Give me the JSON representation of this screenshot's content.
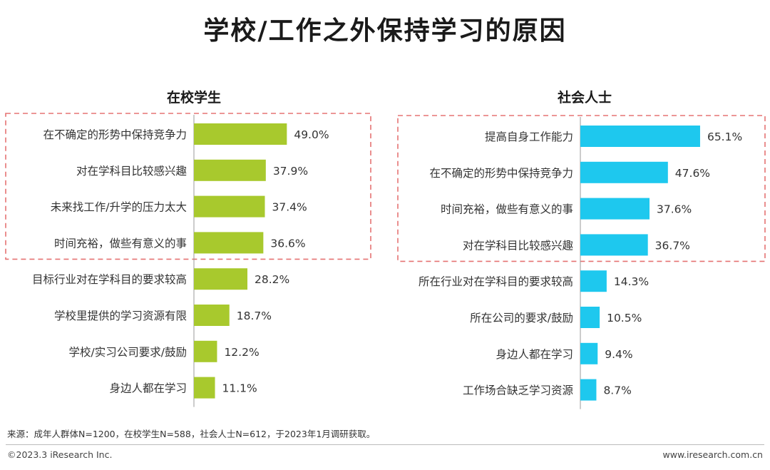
{
  "title": "学校/工作之外保持学习的原因",
  "footer": {
    "source": "来源：成年人群体N=1200，在校学生N=588，社会人士N=612，于2023年1月调研获取。",
    "copyright": "©2023.3 iResearch Inc.",
    "website": "www.iresearch.com.cn"
  },
  "colors": {
    "student": "#a8c92d",
    "social": "#1ec8ee",
    "highlight": "#e57373",
    "axis": "#999999"
  },
  "chart_data": [
    {
      "type": "bar",
      "orientation": "horizontal",
      "title": "在校学生",
      "categories": [
        "在不确定的形势中保持竞争力",
        "对在学科目比较感兴趣",
        "未来找工作/升学的压力太大",
        "时间充裕，做些有意义的事",
        "目标行业对在学科目的要求较高",
        "学校里提供的学习资源有限",
        "学校/实习公司要求/鼓励",
        "身边人都在学习"
      ],
      "values": [
        49.0,
        37.9,
        37.4,
        36.6,
        28.2,
        18.7,
        12.2,
        11.1
      ],
      "labels": [
        "49.0%",
        "37.9%",
        "37.4%",
        "36.6%",
        "28.2%",
        "18.7%",
        "12.2%",
        "11.1%"
      ],
      "highlight_top": 4,
      "unit": "%"
    },
    {
      "type": "bar",
      "orientation": "horizontal",
      "title": "社会人士",
      "categories": [
        "提高自身工作能力",
        "在不确定的形势中保持竞争力",
        "时间充裕，做些有意义的事",
        "对在学科目比较感兴趣",
        "所在行业对在学科目的要求较高",
        "所在公司的要求/鼓励",
        "身边人都在学习",
        "工作场合缺乏学习资源"
      ],
      "values": [
        65.1,
        47.6,
        37.6,
        36.7,
        14.3,
        10.5,
        9.4,
        8.7
      ],
      "labels": [
        "65.1%",
        "47.6%",
        "37.6%",
        "36.7%",
        "14.3%",
        "10.5%",
        "9.4%",
        "8.7%"
      ],
      "highlight_top": 4,
      "unit": "%"
    }
  ]
}
